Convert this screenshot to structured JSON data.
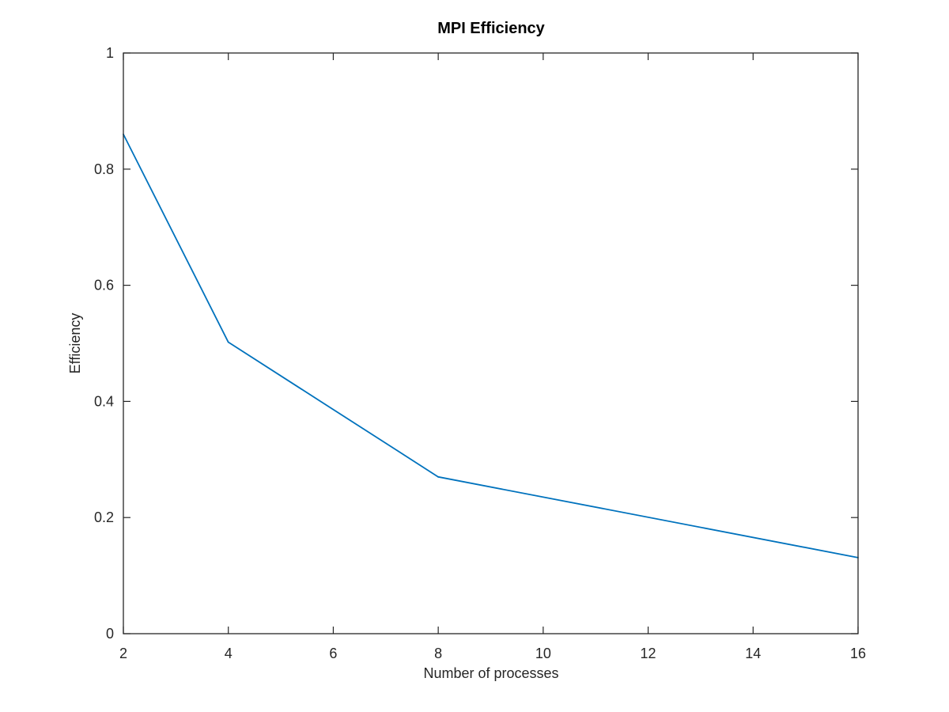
{
  "chart_data": {
    "type": "line",
    "title": "MPI Efficiency",
    "xlabel": "Number of processes",
    "ylabel": "Efficiency",
    "xlim": [
      2,
      16
    ],
    "ylim": [
      0,
      1
    ],
    "xticks": [
      2,
      4,
      6,
      8,
      10,
      12,
      14,
      16
    ],
    "yticks": [
      0,
      0.2,
      0.4,
      0.6,
      0.8,
      1
    ],
    "xtick_labels": [
      "2",
      "4",
      "6",
      "8",
      "10",
      "12",
      "14",
      "16"
    ],
    "ytick_labels": [
      "0",
      "0.2",
      "0.4",
      "0.6",
      "0.8",
      "1"
    ],
    "grid": false,
    "series": [
      {
        "color": "#0072bd",
        "x": [
          2,
          4,
          8,
          16
        ],
        "y": [
          0.86,
          0.502,
          0.27,
          0.131
        ]
      }
    ]
  }
}
